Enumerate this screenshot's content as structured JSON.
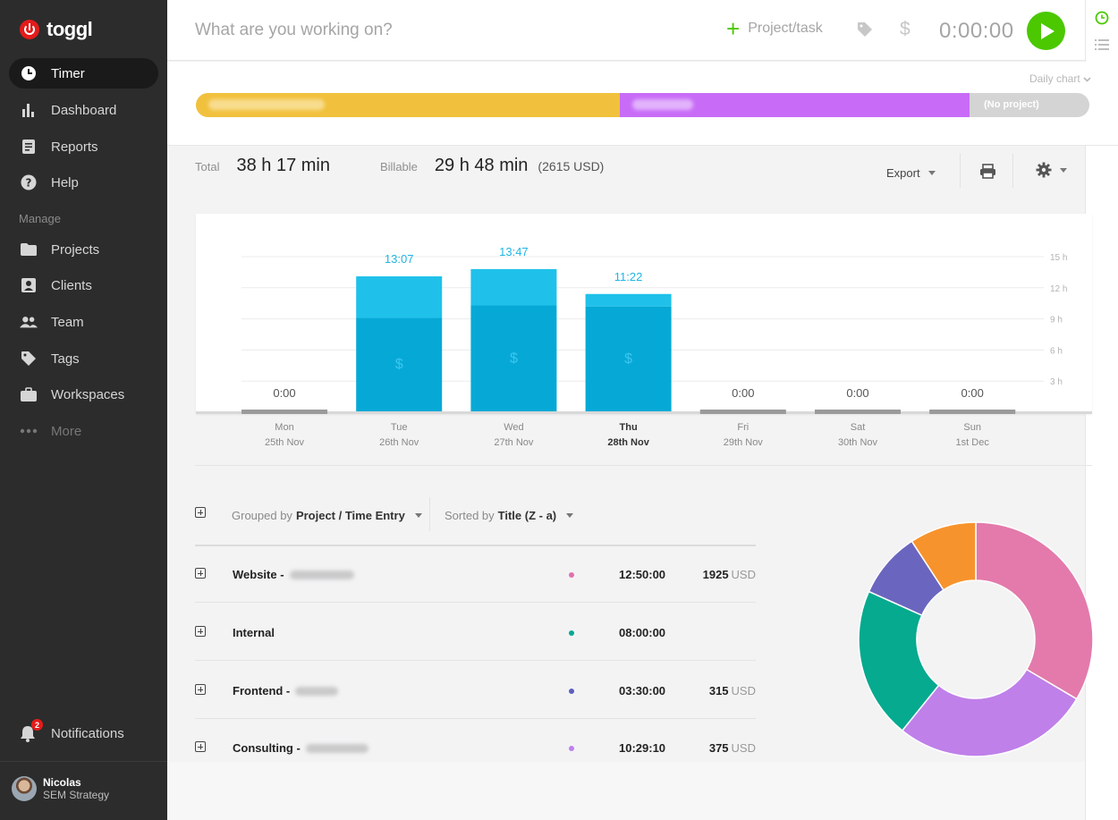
{
  "brand": {
    "name": "toggl"
  },
  "sidebar": {
    "items": [
      {
        "label": "Timer",
        "icon": "clock-icon",
        "active": true
      },
      {
        "label": "Dashboard",
        "icon": "bar-chart-icon"
      },
      {
        "label": "Reports",
        "icon": "report-icon"
      },
      {
        "label": "Help",
        "icon": "question-icon"
      }
    ],
    "manage_label": "Manage",
    "manage_items": [
      {
        "label": "Projects",
        "icon": "folder-icon"
      },
      {
        "label": "Clients",
        "icon": "client-icon"
      },
      {
        "label": "Team",
        "icon": "team-icon"
      },
      {
        "label": "Tags",
        "icon": "tag-icon"
      },
      {
        "label": "Workspaces",
        "icon": "briefcase-icon"
      },
      {
        "label": "More",
        "icon": "more-dots-icon"
      }
    ],
    "notifications": {
      "label": "Notifications",
      "count": "2"
    },
    "user": {
      "name": "Nicolas",
      "workspace": "SEM Strategy"
    }
  },
  "timer_bar": {
    "placeholder": "What are you working on?",
    "project_label": "Project/task",
    "duration": "0:00:00"
  },
  "daily_strip": {
    "toggle_label": "Daily chart",
    "no_project_label": "(No project)",
    "segments": [
      {
        "share": 0.474,
        "color": "#f1c13d"
      },
      {
        "share": 0.392,
        "color": "#c86cf7"
      },
      {
        "share": 0.134,
        "color": "#d4d4d4"
      }
    ]
  },
  "summary": {
    "total_label": "Total",
    "total_value": "38 h 17 min",
    "billable_label": "Billable",
    "billable_value": "29 h 48 min",
    "billable_amount": "(2615 USD)",
    "export_label": "Export"
  },
  "chart_data": {
    "type": "bar",
    "categories": [
      "Mon",
      "Tue",
      "Wed",
      "Thu",
      "Fri",
      "Sat",
      "Sun"
    ],
    "dates": [
      "25th Nov",
      "26th Nov",
      "27th Nov",
      "28th Nov",
      "29th Nov",
      "30th Nov",
      "1st Dec"
    ],
    "highlighted": "Thu",
    "series": [
      {
        "values": [
          0,
          9.1,
          10.3,
          10.2,
          0,
          0,
          0
        ]
      },
      {
        "values": [
          0,
          4.0,
          3.5,
          1.2,
          0,
          0,
          0
        ]
      }
    ],
    "labels": [
      "0:00",
      "13:07",
      "13:47",
      "11:22",
      "0:00",
      "0:00",
      "0:00"
    ],
    "billable_marker": "$",
    "yticks": [
      "3 h",
      "6 h",
      "9 h",
      "12 h",
      "15 h"
    ],
    "ylim": [
      0,
      15
    ],
    "colors": {
      "billable": "#06a9d6",
      "non_billable": "#1fc1ea",
      "zero": "#9a9a9a",
      "label": "#1fb5e6"
    }
  },
  "controls": {
    "grouped_prefix": "Grouped by",
    "grouped_value": "Project / Time Entry",
    "sorted_prefix": "Sorted by",
    "sorted_value": "Title (Z - a)"
  },
  "projects": [
    {
      "name": "Website -",
      "color": "#e070b0",
      "duration": "12:50:00",
      "amount": "1925",
      "currency": "USD"
    },
    {
      "name": "Internal",
      "color": "#06a893",
      "duration": "08:00:00",
      "amount": "",
      "currency": ""
    },
    {
      "name": "Frontend -",
      "color": "#5b5fc0",
      "duration": "03:30:00",
      "amount": "315",
      "currency": "USD"
    },
    {
      "name": "Consulting -",
      "color": "#bf7ff0",
      "duration": "10:29:10",
      "amount": "375",
      "currency": "USD"
    }
  ],
  "donut": {
    "slices": [
      {
        "share": 0.335,
        "color": "#e37aab"
      },
      {
        "share": 0.273,
        "color": "#bf80e9"
      },
      {
        "share": 0.209,
        "color": "#06aa8f"
      },
      {
        "share": 0.091,
        "color": "#6a66bf"
      },
      {
        "share": 0.092,
        "color": "#f7932d"
      }
    ]
  }
}
